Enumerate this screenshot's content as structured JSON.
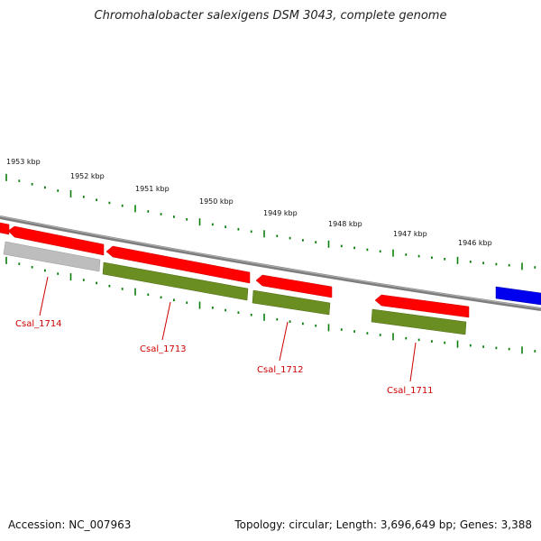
{
  "title": "Chromohalobacter salexigens DSM 3043, complete genome",
  "footer": {
    "accession": "Accession: NC_007963",
    "summary": "Topology: circular; Length: 3,696,649 bp; Genes: 3,388"
  },
  "colors": {
    "backbone": "#808080",
    "cds": "#ff0000",
    "gene": "#6b8e23",
    "pseudo": "#bdbdbd",
    "other": "#0000ff",
    "ticks": "#0a7d0a",
    "label": "#cc0000"
  },
  "scale_labels": [
    "1953 kbp",
    "1952 kbp",
    "1951 kbp",
    "1950 kbp",
    "1949 kbp",
    "1948 kbp",
    "1947 kbp",
    "1946 kbp"
  ],
  "genes": [
    {
      "id": "Csal_1714",
      "label": "Csal_1714"
    },
    {
      "id": "Csal_1713",
      "label": "Csal_1713"
    },
    {
      "id": "Csal_1712",
      "label": "Csal_1712"
    },
    {
      "id": "Csal_1711",
      "label": "Csal_1711"
    }
  ]
}
